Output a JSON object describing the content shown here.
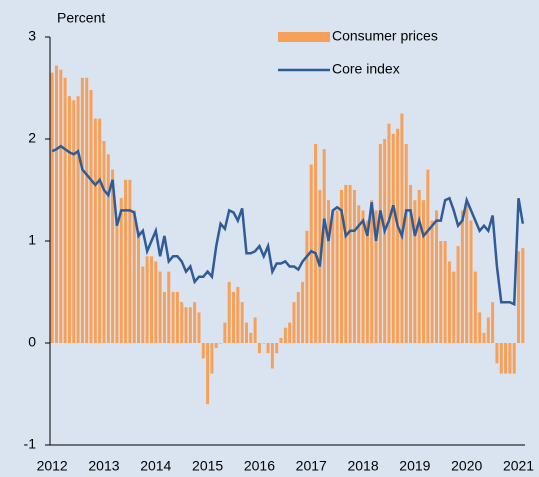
{
  "chart_data": {
    "type": "bar_line",
    "y_label": "Percent",
    "categories": [
      "2012",
      null,
      null,
      null,
      null,
      null,
      null,
      null,
      null,
      null,
      null,
      null,
      "2013",
      null,
      null,
      null,
      null,
      null,
      null,
      null,
      null,
      null,
      null,
      null,
      "2014",
      null,
      null,
      null,
      null,
      null,
      null,
      null,
      null,
      null,
      null,
      null,
      "2015",
      null,
      null,
      null,
      null,
      null,
      null,
      null,
      null,
      null,
      null,
      null,
      "2016",
      null,
      null,
      null,
      null,
      null,
      null,
      null,
      null,
      null,
      null,
      null,
      "2017",
      null,
      null,
      null,
      null,
      null,
      null,
      null,
      null,
      null,
      null,
      null,
      "2018",
      null,
      null,
      null,
      null,
      null,
      null,
      null,
      null,
      null,
      null,
      null,
      "2019",
      null,
      null,
      null,
      null,
      null,
      null,
      null,
      null,
      null,
      null,
      null,
      "2020",
      null,
      null,
      null,
      null,
      null,
      null,
      null,
      null,
      null,
      null,
      null,
      "2021",
      null
    ],
    "series": [
      {
        "name": "Consumer prices",
        "kind": "bar",
        "color": "#f7a05a",
        "values": [
          2.65,
          2.72,
          2.68,
          2.6,
          2.42,
          2.38,
          2.42,
          2.6,
          2.6,
          2.48,
          2.2,
          2.2,
          1.98,
          1.85,
          1.7,
          1.2,
          1.42,
          1.6,
          1.6,
          1.3,
          1.1,
          0.75,
          0.85,
          0.85,
          0.8,
          0.7,
          0.5,
          0.7,
          0.5,
          0.5,
          0.4,
          0.35,
          0.35,
          0.4,
          0.3,
          -0.15,
          -0.6,
          -0.3,
          -0.05,
          0.0,
          0.2,
          0.6,
          0.5,
          0.55,
          0.4,
          0.2,
          0.1,
          0.25,
          -0.1,
          0.0,
          -0.1,
          -0.25,
          -0.1,
          0.05,
          0.15,
          0.2,
          0.4,
          0.5,
          0.6,
          1.1,
          1.75,
          1.95,
          1.5,
          1.9,
          1.4,
          1.3,
          1.3,
          1.5,
          1.55,
          1.55,
          1.5,
          1.35,
          1.3,
          1.2,
          1.4,
          1.3,
          1.95,
          2.0,
          2.15,
          2.05,
          2.1,
          2.25,
          1.95,
          1.55,
          1.4,
          1.5,
          1.4,
          1.7,
          1.2,
          1.3,
          1.0,
          1.0,
          0.8,
          0.7,
          0.95,
          1.3,
          1.35,
          1.2,
          0.7,
          0.3,
          0.1,
          0.25,
          0.4,
          -0.2,
          -0.3,
          -0.3,
          -0.3,
          -0.3,
          0.9,
          0.93
        ]
      },
      {
        "name": "Core index",
        "kind": "line",
        "color": "#2f5b96",
        "values": [
          1.88,
          1.9,
          1.93,
          1.9,
          1.87,
          1.85,
          1.88,
          1.7,
          1.65,
          1.6,
          1.55,
          1.6,
          1.5,
          1.45,
          1.6,
          1.15,
          1.3,
          1.3,
          1.3,
          1.28,
          1.05,
          1.1,
          0.9,
          1.0,
          1.1,
          0.85,
          1.05,
          0.8,
          0.85,
          0.85,
          0.8,
          0.7,
          0.75,
          0.6,
          0.65,
          0.65,
          0.7,
          0.65,
          0.95,
          1.17,
          1.12,
          1.3,
          1.28,
          1.2,
          1.32,
          0.88,
          0.88,
          0.9,
          0.95,
          0.85,
          0.95,
          0.7,
          0.78,
          0.78,
          0.8,
          0.75,
          0.75,
          0.72,
          0.8,
          0.85,
          0.9,
          0.88,
          0.75,
          1.22,
          1.0,
          1.3,
          1.33,
          1.3,
          1.05,
          1.1,
          1.1,
          1.15,
          1.2,
          1.05,
          1.38,
          1.0,
          1.3,
          1.1,
          1.2,
          1.35,
          1.15,
          1.05,
          1.3,
          1.3,
          1.05,
          1.2,
          1.05,
          1.1,
          1.15,
          1.2,
          1.2,
          1.4,
          1.42,
          1.3,
          1.15,
          1.2,
          1.4,
          1.3,
          1.2,
          1.1,
          1.15,
          1.1,
          1.25,
          0.75,
          0.4,
          0.4,
          0.4,
          0.38,
          1.42,
          1.17
        ]
      }
    ],
    "ylim": [
      -1,
      3
    ],
    "yticks": [
      -1,
      0,
      1,
      2,
      3
    ],
    "legend": "upper right",
    "background": "#dae4f1"
  }
}
